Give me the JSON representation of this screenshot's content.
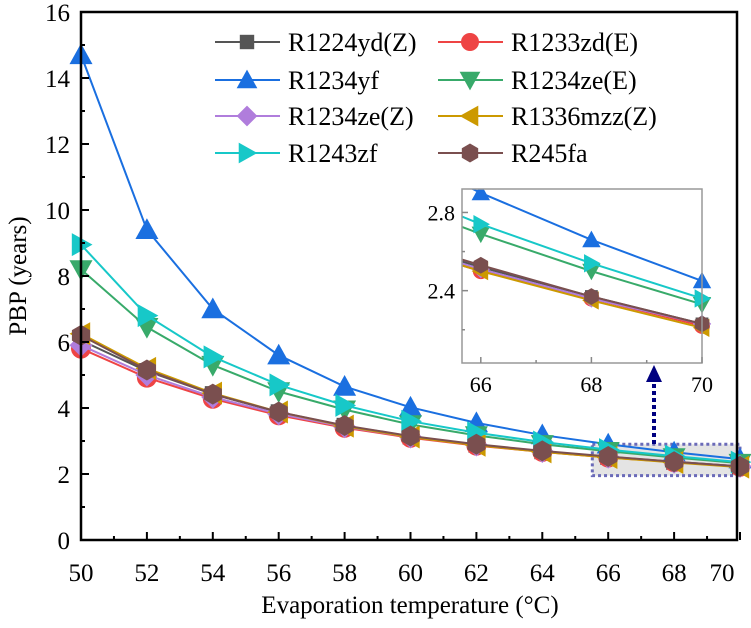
{
  "chart_data": {
    "type": "line",
    "title": "",
    "xlabel": "Evaporation temperature (°C)",
    "ylabel": "PBP (years)",
    "xlim": [
      50,
      70
    ],
    "ylim": [
      0,
      16
    ],
    "xticks": [
      50,
      52,
      54,
      56,
      58,
      60,
      62,
      64,
      66,
      68,
      70
    ],
    "yticks": [
      0,
      2,
      4,
      6,
      8,
      10,
      12,
      14,
      16
    ],
    "grid": false,
    "legend_placement": "top-right",
    "x": [
      50,
      52,
      54,
      56,
      58,
      60,
      62,
      64,
      66,
      68,
      70
    ],
    "series": [
      {
        "name": "R1224yd(Z)",
        "color": "#555555",
        "marker": "square",
        "values": [
          6.05,
          5.12,
          4.42,
          3.87,
          3.46,
          3.14,
          2.89,
          2.69,
          2.52,
          2.37,
          2.23
        ]
      },
      {
        "name": "R1233zd(E)",
        "color": "#ee4444",
        "marker": "circle",
        "values": [
          5.8,
          4.92,
          4.28,
          3.78,
          3.4,
          3.1,
          2.86,
          2.67,
          2.5,
          2.36,
          2.22
        ]
      },
      {
        "name": "R1234yf",
        "color": "#1a6fe0",
        "marker": "triangle-up",
        "values": [
          14.7,
          9.4,
          7.0,
          5.6,
          4.65,
          4.02,
          3.55,
          3.18,
          2.9,
          2.66,
          2.45
        ]
      },
      {
        "name": "R1234ze(E)",
        "color": "#38aa6a",
        "marker": "triangle-down",
        "values": [
          8.2,
          6.45,
          5.3,
          4.5,
          3.95,
          3.5,
          3.17,
          2.9,
          2.69,
          2.5,
          2.33
        ]
      },
      {
        "name": "R1234ze(Z)",
        "color": "#b07ddc",
        "marker": "diamond",
        "values": [
          5.9,
          5.0,
          4.33,
          3.82,
          3.43,
          3.12,
          2.88,
          2.68,
          2.51,
          2.36,
          2.23
        ]
      },
      {
        "name": "R1336mzz(Z)",
        "color": "#cc9900",
        "marker": "triangle-left",
        "values": [
          6.25,
          5.2,
          4.45,
          3.88,
          3.45,
          3.12,
          2.87,
          2.67,
          2.5,
          2.35,
          2.21
        ]
      },
      {
        "name": "R1243zf",
        "color": "#17c8c8",
        "marker": "triangle-right",
        "values": [
          8.95,
          6.8,
          5.55,
          4.7,
          4.08,
          3.6,
          3.25,
          2.97,
          2.74,
          2.54,
          2.36
        ]
      },
      {
        "name": "R245fa",
        "color": "#7a4f4f",
        "marker": "hexagon",
        "values": [
          6.2,
          5.15,
          4.42,
          3.88,
          3.47,
          3.15,
          2.9,
          2.7,
          2.53,
          2.37,
          2.23
        ]
      }
    ],
    "inset": {
      "xlim": [
        65.66,
        70
      ],
      "ylim": [
        2.03,
        2.92
      ],
      "xticks": [
        66,
        68,
        70
      ],
      "yticks": [
        2.4,
        2.8
      ],
      "highlight_region": {
        "x": [
          65.7,
          70
        ],
        "y": [
          1.95,
          2.9
        ]
      }
    }
  }
}
